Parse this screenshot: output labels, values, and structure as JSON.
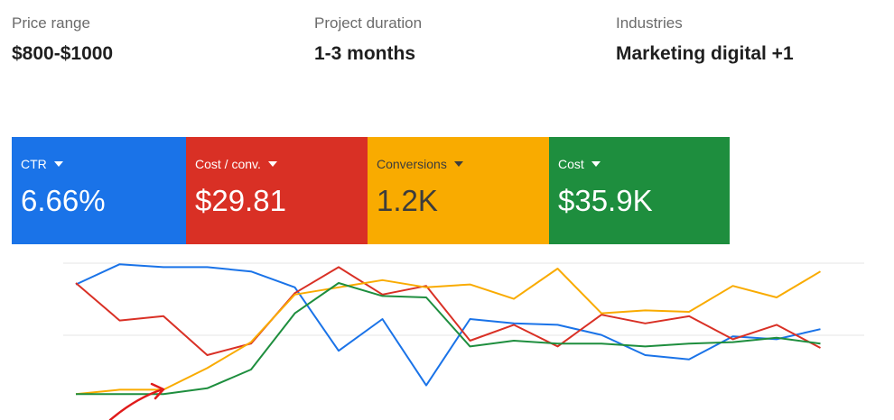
{
  "meta": [
    {
      "label": "Price range",
      "value": "$800-$1000"
    },
    {
      "label": "Project duration",
      "value": "1-3 months"
    },
    {
      "label": "Industries",
      "value": "Marketing digital +1"
    }
  ],
  "metrics": [
    {
      "label": "CTR",
      "value": "6.66%",
      "bg": "#1a73e8",
      "fg": "#ffffff"
    },
    {
      "label": "Cost / conv.",
      "value": "$29.81",
      "bg": "#d93025",
      "fg": "#ffffff"
    },
    {
      "label": "Conversions",
      "value": "1.2K",
      "bg": "#f9ab00",
      "fg": "#3c3c3c"
    },
    {
      "label": "Cost",
      "value": "$35.9K",
      "bg": "#1e8e3e",
      "fg": "#ffffff"
    }
  ],
  "chart_data": {
    "type": "line",
    "x": [
      1,
      2,
      3,
      4,
      5,
      6,
      7,
      8,
      9,
      10,
      11,
      12,
      13,
      14,
      15,
      16,
      17,
      18,
      19
    ],
    "ylim": [
      0,
      100
    ],
    "series": [
      {
        "name": "CTR",
        "color": "#1a73e8",
        "values": [
          84,
          98,
          96,
          96,
          93,
          82,
          38,
          60,
          14,
          60,
          57,
          56,
          49,
          35,
          32,
          48,
          46,
          53,
          null
        ]
      },
      {
        "name": "Cost / conv.",
        "color": "#d93025",
        "values": [
          85,
          59,
          62,
          35,
          43,
          78,
          96,
          77,
          83,
          45,
          56,
          41,
          63,
          57,
          62,
          46,
          56,
          40,
          null
        ]
      },
      {
        "name": "Conversions",
        "color": "#f9ab00",
        "values": [
          8,
          11,
          11,
          26,
          44,
          77,
          82,
          87,
          82,
          84,
          74,
          95,
          64,
          66,
          65,
          83,
          75,
          93,
          null
        ]
      },
      {
        "name": "Cost",
        "color": "#1e8e3e",
        "values": [
          8,
          8,
          8,
          12,
          25,
          64,
          85,
          76,
          75,
          41,
          45,
          43,
          43,
          41,
          43,
          44,
          47,
          43,
          null
        ]
      }
    ]
  },
  "colors": {
    "annotation": "#e01b1b",
    "gridline": "#e6e6e6"
  }
}
